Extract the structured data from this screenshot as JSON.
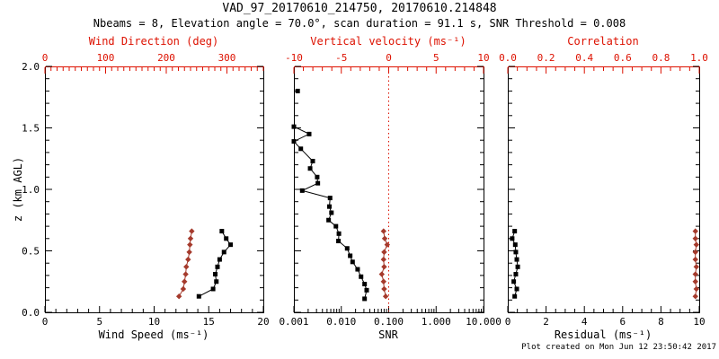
{
  "header": {
    "title": "VAD_97_20170610_214750, 20170610.214848",
    "subtitle": "Nbeams = 8, Elevation angle = 70.0°, scan duration = 91.1 s, SNR Threshold = 0.008"
  },
  "footer": {
    "created": "Plot created on Mon Jun 12 23:50:42 2017"
  },
  "colors": {
    "black": "#000000",
    "axis_red": "#dd1100",
    "data_red": "#a53a2c"
  },
  "chart_data": {
    "type": "line",
    "title": "VAD_97_20170610_214750, 20170610.214848",
    "grid": false,
    "legend": "none",
    "y_axis": {
      "label": "z (km AGL)",
      "range": [
        0,
        2
      ],
      "ticks": [
        {
          "v": 0.0,
          "label": "0.0"
        },
        {
          "v": 0.5,
          "label": "0.5"
        },
        {
          "v": 1.0,
          "label": "1.0"
        },
        {
          "v": 1.5,
          "label": "1.5"
        },
        {
          "v": 2.0,
          "label": "2.0"
        }
      ],
      "minor_step": 0.1
    },
    "panels": [
      {
        "id": "wind-panel",
        "bottom_axis": {
          "label": "Wind Speed (ms⁻¹)",
          "range": [
            0,
            20
          ],
          "ticks": [
            {
              "v": 0,
              "label": "0"
            },
            {
              "v": 5,
              "label": "5"
            },
            {
              "v": 10,
              "label": "10"
            },
            {
              "v": 15,
              "label": "15"
            },
            {
              "v": 20,
              "label": "20"
            }
          ],
          "minor_step": 1
        },
        "top_axis": {
          "label": "Wind Direction (deg)",
          "range": [
            0,
            360
          ],
          "ticks": [
            {
              "v": 0,
              "label": "0"
            },
            {
              "v": 100,
              "label": "100"
            },
            {
              "v": 200,
              "label": "200"
            },
            {
              "v": 300,
              "label": "300"
            }
          ],
          "minor_step": 10
        },
        "series": [
          {
            "name": "wind-speed",
            "axis": "bottom",
            "color": "black",
            "marker": "square",
            "points": [
              [
                0.13,
                14.1
              ],
              [
                0.19,
                15.4
              ],
              [
                0.25,
                15.7
              ],
              [
                0.31,
                15.6
              ],
              [
                0.37,
                15.8
              ],
              [
                0.43,
                16.0
              ],
              [
                0.49,
                16.4
              ],
              [
                0.55,
                17.0
              ],
              [
                0.6,
                16.6
              ],
              [
                0.66,
                16.2
              ]
            ]
          },
          {
            "name": "wind-direction",
            "axis": "top",
            "color": "red",
            "marker": "diamond",
            "points": [
              [
                0.13,
                221
              ],
              [
                0.19,
                228
              ],
              [
                0.25,
                230
              ],
              [
                0.31,
                232
              ],
              [
                0.37,
                233
              ],
              [
                0.43,
                236
              ],
              [
                0.49,
                238
              ],
              [
                0.55,
                239
              ],
              [
                0.6,
                240
              ],
              [
                0.66,
                242
              ]
            ]
          }
        ]
      },
      {
        "id": "snr-panel",
        "bottom_axis": {
          "label": "SNR",
          "log": true,
          "range": [
            0.001,
            10
          ],
          "ticks": [
            {
              "v": 0.001,
              "label": "0.001"
            },
            {
              "v": 0.01,
              "label": "0.010"
            },
            {
              "v": 0.1,
              "label": "0.100"
            },
            {
              "v": 1,
              "label": "1.000"
            },
            {
              "v": 10,
              "label": "10.000"
            }
          ]
        },
        "top_axis": {
          "label": "Vertical velocity (ms⁻¹)",
          "range": [
            -10,
            10
          ],
          "ticks": [
            {
              "v": -10,
              "label": "-10"
            },
            {
              "v": -5,
              "label": "-5"
            },
            {
              "v": 0,
              "label": "0"
            },
            {
              "v": 5,
              "label": "5"
            },
            {
              "v": 10,
              "label": "10"
            }
          ],
          "minor_step": 1,
          "zero_line": true
        },
        "series": [
          {
            "name": "snr",
            "axis": "bottom",
            "color": "black",
            "marker": "square",
            "segments": [
              [
                [
                  0.11,
                  0.031
                ],
                [
                  0.18,
                  0.0343
                ],
                [
                  0.23,
                  0.031
                ],
                [
                  0.29,
                  0.0261
                ],
                [
                  0.35,
                  0.0221
                ],
                [
                  0.41,
                  0.0173
                ],
                [
                  0.46,
                  0.0154
                ],
                [
                  0.52,
                  0.0133
                ],
                [
                  0.58,
                  0.0087
                ],
                [
                  0.64,
                  0.0089
                ],
                [
                  0.7,
                  0.0077
                ],
                [
                  0.75,
                  0.0054
                ],
                [
                  0.81,
                  0.0062
                ],
                [
                  0.86,
                  0.0056
                ],
                [
                  0.93,
                  0.0058
                ],
                [
                  0.99,
                  0.0015
                ],
                [
                  1.05,
                  0.0032
                ],
                [
                  1.1,
                  0.0031
                ],
                [
                  1.17,
                  0.0022
                ],
                [
                  1.23,
                  0.0025
                ],
                [
                  1.33,
                  0.0014
                ],
                [
                  1.39,
                  0.001
                ],
                [
                  1.45,
                  0.0021
                ],
                [
                  1.51,
                  0.001
                ]
              ],
              [
                [
                  1.8,
                  0.0012
                ]
              ]
            ]
          },
          {
            "name": "vertical-velocity",
            "axis": "top",
            "color": "red",
            "marker": "diamond",
            "points": [
              [
                0.13,
                -0.32
              ],
              [
                0.19,
                -0.48
              ],
              [
                0.25,
                -0.54
              ],
              [
                0.31,
                -0.73
              ],
              [
                0.37,
                -0.48
              ],
              [
                0.43,
                -0.54
              ],
              [
                0.49,
                -0.48
              ],
              [
                0.55,
                -0.16
              ],
              [
                0.6,
                -0.42
              ],
              [
                0.66,
                -0.54
              ]
            ]
          }
        ]
      },
      {
        "id": "residual-panel",
        "bottom_axis": {
          "label": "Residual (ms⁻¹)",
          "range": [
            0,
            10
          ],
          "ticks": [
            {
              "v": 0,
              "label": "0"
            },
            {
              "v": 2,
              "label": "2"
            },
            {
              "v": 4,
              "label": "4"
            },
            {
              "v": 6,
              "label": "6"
            },
            {
              "v": 8,
              "label": "8"
            },
            {
              "v": 10,
              "label": "10"
            }
          ],
          "minor_step": 0.5
        },
        "top_axis": {
          "label": "Correlation",
          "range": [
            0,
            1
          ],
          "ticks": [
            {
              "v": 0.0,
              "label": "0.0"
            },
            {
              "v": 0.2,
              "label": "0.2"
            },
            {
              "v": 0.4,
              "label": "0.4"
            },
            {
              "v": 0.6,
              "label": "0.6"
            },
            {
              "v": 0.8,
              "label": "0.8"
            },
            {
              "v": 1.0,
              "label": "1.0"
            }
          ],
          "minor_step": 0.05
        },
        "series": [
          {
            "name": "residual",
            "axis": "bottom",
            "color": "black",
            "marker": "square",
            "points": [
              [
                0.13,
                0.36
              ],
              [
                0.19,
                0.47
              ],
              [
                0.25,
                0.31
              ],
              [
                0.31,
                0.42
              ],
              [
                0.37,
                0.52
              ],
              [
                0.43,
                0.47
              ],
              [
                0.49,
                0.42
              ],
              [
                0.55,
                0.39
              ],
              [
                0.6,
                0.23
              ],
              [
                0.66,
                0.36
              ]
            ]
          },
          {
            "name": "correlation",
            "axis": "top",
            "color": "red",
            "marker": "diamond",
            "points": [
              [
                0.13,
                0.98
              ],
              [
                0.19,
                0.985
              ],
              [
                0.25,
                0.98
              ],
              [
                0.31,
                0.98
              ],
              [
                0.37,
                0.985
              ],
              [
                0.43,
                0.98
              ],
              [
                0.49,
                0.98
              ],
              [
                0.55,
                0.985
              ],
              [
                0.6,
                0.98
              ],
              [
                0.66,
                0.98
              ]
            ]
          }
        ]
      }
    ]
  }
}
